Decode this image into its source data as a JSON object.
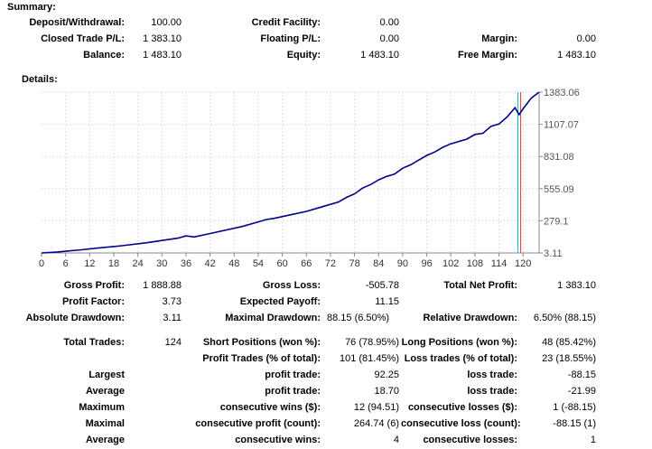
{
  "summary": {
    "title": "Summary:",
    "deposit_label": "Deposit/Withdrawal:",
    "deposit_value": "100.00",
    "closed_pl_label": "Closed Trade P/L:",
    "closed_pl_value": "1 383.10",
    "balance_label": "Balance:",
    "balance_value": "1 483.10",
    "credit_label": "Credit Facility:",
    "credit_value": "0.00",
    "floating_label": "Floating P/L:",
    "floating_value": "0.00",
    "equity_label": "Equity:",
    "equity_value": "1 483.10",
    "margin_label": "Margin:",
    "margin_value": "0.00",
    "free_margin_label": "Free Margin:",
    "free_margin_value": "1 483.10"
  },
  "details": {
    "title": "Details:"
  },
  "chart_data": {
    "type": "line",
    "title": "",
    "xlabel": "",
    "ylabel": "",
    "x_ticks": [
      "0",
      "6",
      "12",
      "18",
      "24",
      "30",
      "36",
      "42",
      "48",
      "54",
      "60",
      "66",
      "72",
      "78",
      "84",
      "90",
      "96",
      "102",
      "108",
      "114",
      "120"
    ],
    "y_ticks": [
      "1383.06",
      "1107.07",
      "831.08",
      "555.09",
      "279.1",
      "3.11"
    ],
    "xlim": [
      0,
      124
    ],
    "ylim": [
      3.11,
      1383.06
    ],
    "grid": true,
    "line_color": "#00008b",
    "vline_colors": [
      "#00bcd4",
      "#e53935"
    ],
    "vlines_x": [
      118.7,
      119.4
    ],
    "series": [
      {
        "x": [
          0,
          4,
          6,
          10,
          14,
          20,
          26,
          30,
          34,
          36,
          38,
          42,
          46,
          50,
          54,
          56,
          58,
          62,
          66,
          70,
          72,
          74,
          76,
          78,
          80,
          82,
          84,
          86,
          88,
          90,
          92,
          94,
          96,
          98,
          100,
          102,
          104,
          106,
          108,
          110,
          112,
          114,
          116,
          118,
          119,
          120,
          122,
          124
        ],
        "y": [
          3,
          12,
          18,
          30,
          45,
          65,
          90,
          110,
          130,
          150,
          140,
          170,
          200,
          230,
          270,
          290,
          300,
          330,
          360,
          400,
          420,
          440,
          480,
          510,
          560,
          590,
          630,
          660,
          680,
          730,
          760,
          800,
          840,
          870,
          910,
          940,
          960,
          980,
          1020,
          1030,
          1090,
          1110,
          1170,
          1250,
          1190,
          1240,
          1330,
          1383
        ]
      }
    ]
  },
  "stats": {
    "gross_profit_label": "Gross Profit:",
    "gross_profit_value": "1 888.88",
    "gross_loss_label": "Gross Loss:",
    "gross_loss_value": "-505.78",
    "total_net_profit_label": "Total Net Profit:",
    "total_net_profit_value": "1 383.10",
    "profit_factor_label": "Profit Factor:",
    "profit_factor_value": "3.73",
    "expected_payoff_label": "Expected Payoff:",
    "expected_payoff_value": "11.15",
    "abs_drawdown_label": "Absolute Drawdown:",
    "abs_drawdown_value": "3.11",
    "max_drawdown_label": "Maximal Drawdown:",
    "max_drawdown_value": "88.15 (6.50%)",
    "rel_drawdown_label": "Relative Drawdown:",
    "rel_drawdown_value": "6.50% (88.15)",
    "total_trades_label": "Total Trades:",
    "total_trades_value": "124",
    "short_label": "Short Positions (won %):",
    "short_value": "76 (78.95%)",
    "long_label": "Long Positions (won %):",
    "long_value": "48 (85.42%)",
    "profit_trades_label": "Profit Trades (% of total):",
    "profit_trades_value": "101 (81.45%)",
    "loss_trades_label": "Loss trades (% of total):",
    "loss_trades_value": "23 (18.55%)",
    "largest_label": "Largest",
    "largest_profit_label": "profit trade:",
    "largest_profit_value": "92.25",
    "largest_loss_label": "loss trade:",
    "largest_loss_value": "-88.15",
    "average_label": "Average",
    "average_profit_label": "profit trade:",
    "average_profit_value": "18.70",
    "average_loss_label": "loss trade:",
    "average_loss_value": "-21.99",
    "maximum_label": "Maximum",
    "max_cons_wins_label": "consecutive wins ($):",
    "max_cons_wins_value": "12 (94.51)",
    "max_cons_losses_label": "consecutive losses ($):",
    "max_cons_losses_value": "1 (-88.15)",
    "maximal_label": "Maximal",
    "maximal_cons_profit_label": "consecutive profit (count):",
    "maximal_cons_profit_value": "264.74 (6)",
    "maximal_cons_loss_label": "consecutive loss (count):",
    "maximal_cons_loss_value": "-88.15 (1)",
    "average2_label": "Average",
    "avg_cons_wins_label": "consecutive wins:",
    "avg_cons_wins_value": "4",
    "avg_cons_losses_label": "consecutive losses:",
    "avg_cons_losses_value": "1"
  }
}
